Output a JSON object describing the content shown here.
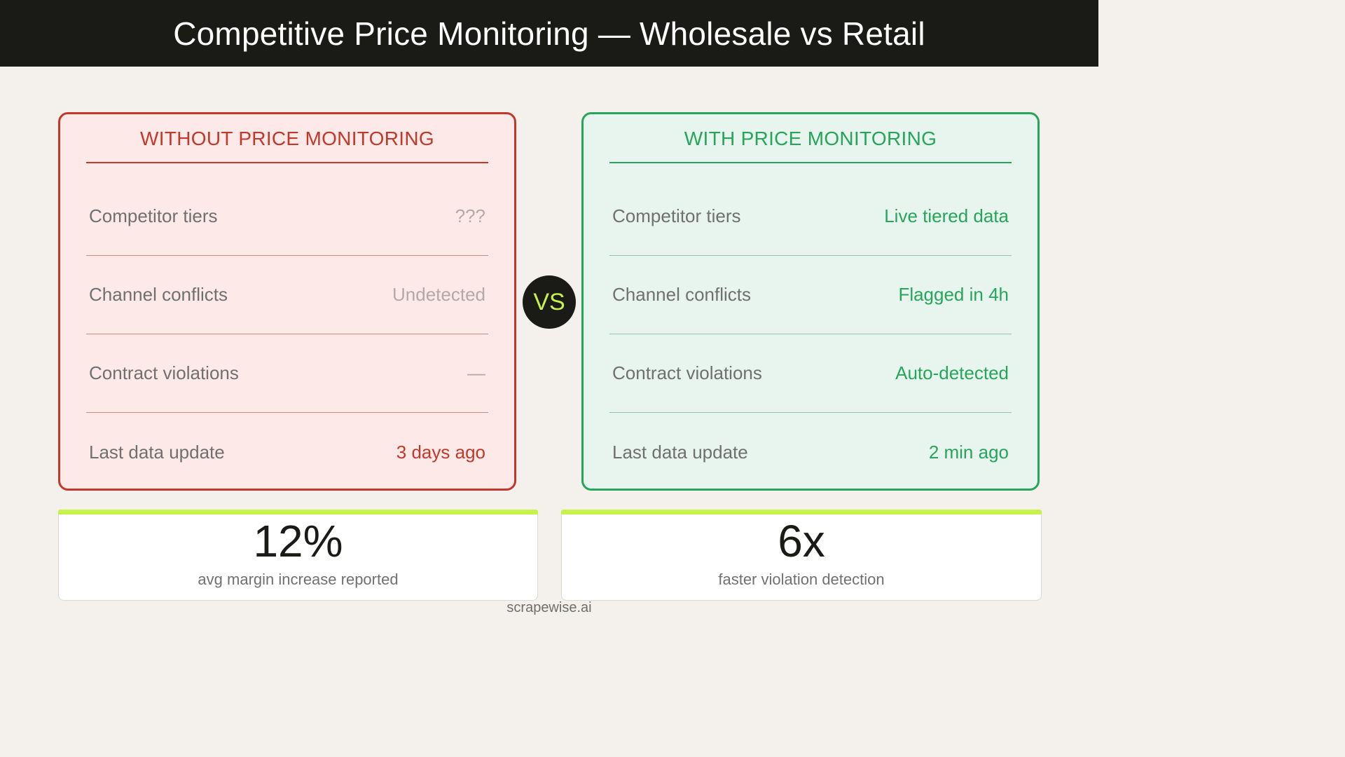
{
  "header": {
    "title": "Competitive Price Monitoring — Wholesale vs Retail"
  },
  "without_panel": {
    "title": "WITHOUT PRICE MONITORING",
    "rows": [
      {
        "label": "Competitor tiers",
        "value": "???"
      },
      {
        "label": "Channel conflicts",
        "value": "Undetected"
      },
      {
        "label": "Contract violations",
        "value": "—"
      },
      {
        "label": "Last data update",
        "value": "3 days ago"
      }
    ]
  },
  "vs_badge": "VS",
  "with_panel": {
    "title": "WITH PRICE MONITORING",
    "rows": [
      {
        "label": "Competitor tiers",
        "value": "Live tiered data"
      },
      {
        "label": "Channel conflicts",
        "value": "Flagged in 4h"
      },
      {
        "label": "Contract violations",
        "value": "Auto-detected"
      },
      {
        "label": "Last data update",
        "value": "2 min ago"
      }
    ]
  },
  "stats": [
    {
      "value": "12%",
      "caption": "avg margin increase reported"
    },
    {
      "value": "6x",
      "caption": "faster violation detection"
    }
  ],
  "footer": {
    "brand": "scrapewise.ai"
  },
  "colors": {
    "negative": "#c0392b",
    "positive": "#27a55a",
    "accent": "#c6f24a",
    "dark": "#1a1a17"
  }
}
